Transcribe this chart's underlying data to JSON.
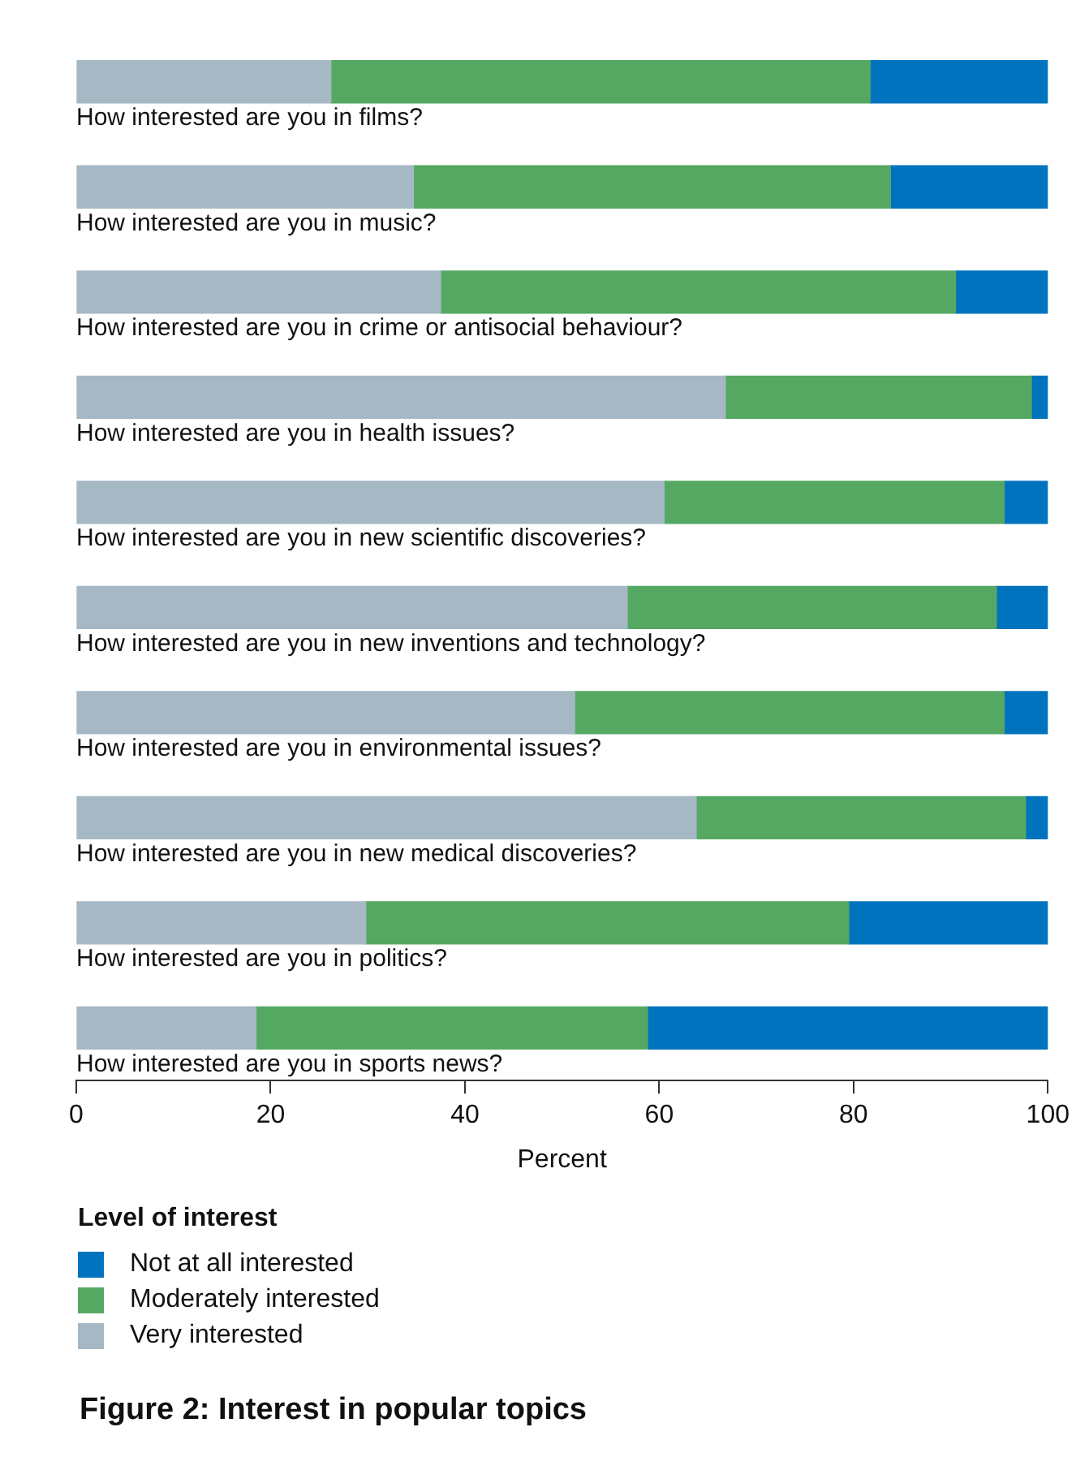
{
  "chart_data": {
    "type": "bar",
    "orientation": "horizontal",
    "stacked": true,
    "title": "Figure 2: Interest in popular topics",
    "xlabel": "Percent",
    "legend_title": "Level of interest",
    "legend": "bottom",
    "grid": false,
    "categories": [
      "How interested are you in films?",
      "How interested are you in music?",
      "How interested are you in crime or antisocial behaviour?",
      "How interested are you in health issues?",
      "How interested are you in new scientific discoveries?",
      "How interested are you in new inventions and technology?",
      "How interested are you in environmental issues?",
      "How interested are you in new medical discoveries?",
      "How interested are you in politics?",
      "How interested are you in sports news?"
    ],
    "series": [
      {
        "name": "Very interested",
        "color": "#a5b8c4",
        "values": [
          26.2,
          34.7,
          37.5,
          66.8,
          60.5,
          56.7,
          51.3,
          63.8,
          29.8,
          18.5
        ]
      },
      {
        "name": "Moderately interested",
        "color": "#55a862",
        "values": [
          55.5,
          49.1,
          53,
          31.5,
          35,
          38,
          44.2,
          33.9,
          49.7,
          40.3
        ]
      },
      {
        "name": "Not at all interested",
        "color": "#0073be",
        "values": [
          18.3,
          16.2,
          9.5,
          1.7,
          4.5,
          5.3,
          4.5,
          2.3,
          20.5,
          41.2
        ]
      }
    ],
    "xlim": [
      0,
      100
    ],
    "xticks": [
      0,
      20,
      40,
      60,
      80,
      100
    ]
  }
}
